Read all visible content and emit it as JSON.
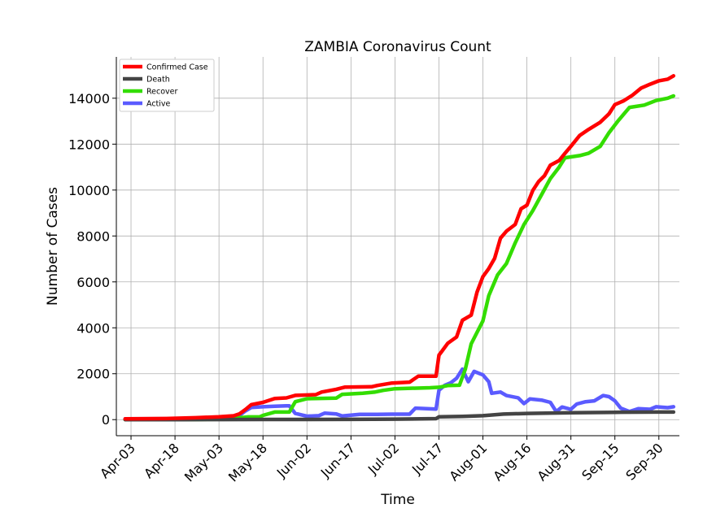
{
  "chart_data": {
    "type": "line",
    "title": "ZAMBIA Coronavirus Count",
    "xlabel": "Time",
    "ylabel": "Number of Cases",
    "x_ticks": [
      "Apr-03",
      "Apr-18",
      "May-03",
      "May-18",
      "Jun-02",
      "Jun-17",
      "Jul-02",
      "Jul-17",
      "Aug-01",
      "Aug-16",
      "Aug-31",
      "Sep-15",
      "Sep-30"
    ],
    "y_ticks": [
      0,
      2000,
      4000,
      6000,
      8000,
      10000,
      12000,
      14000
    ],
    "xlim": [
      "2020-03-29",
      "2020-10-07"
    ],
    "ylim": [
      -700,
      15800
    ],
    "grid": true,
    "legend_position": "top-left",
    "series": [
      {
        "name": "Confirmed Case",
        "color": "#ff0000",
        "points": [
          [
            "2020-04-01",
            35
          ],
          [
            "2020-04-15",
            48
          ],
          [
            "2020-04-25",
            84
          ],
          [
            "2020-05-03",
            124
          ],
          [
            "2020-05-08",
            167
          ],
          [
            "2020-05-10",
            252
          ],
          [
            "2020-05-12",
            441
          ],
          [
            "2020-05-14",
            654
          ],
          [
            "2020-05-18",
            753
          ],
          [
            "2020-05-22",
            920
          ],
          [
            "2020-05-26",
            946
          ],
          [
            "2020-05-29",
            1057
          ],
          [
            "2020-06-05",
            1089
          ],
          [
            "2020-06-07",
            1200
          ],
          [
            "2020-06-12",
            1321
          ],
          [
            "2020-06-15",
            1416
          ],
          [
            "2020-06-24",
            1430
          ],
          [
            "2020-06-26",
            1489
          ],
          [
            "2020-07-01",
            1594
          ],
          [
            "2020-07-07",
            1632
          ],
          [
            "2020-07-10",
            1895
          ],
          [
            "2020-07-16",
            1895
          ],
          [
            "2020-07-17",
            2810
          ],
          [
            "2020-07-18",
            2980
          ],
          [
            "2020-07-20",
            3326
          ],
          [
            "2020-07-23",
            3600
          ],
          [
            "2020-07-25",
            4328
          ],
          [
            "2020-07-28",
            4552
          ],
          [
            "2020-07-30",
            5555
          ],
          [
            "2020-08-01",
            6228
          ],
          [
            "2020-08-03",
            6580
          ],
          [
            "2020-08-05",
            7022
          ],
          [
            "2020-08-07",
            7903
          ],
          [
            "2020-08-09",
            8210
          ],
          [
            "2020-08-12",
            8501
          ],
          [
            "2020-08-14",
            9186
          ],
          [
            "2020-08-16",
            9343
          ],
          [
            "2020-08-18",
            9981
          ],
          [
            "2020-08-20",
            10372
          ],
          [
            "2020-08-22",
            10627
          ],
          [
            "2020-08-24",
            11082
          ],
          [
            "2020-08-27",
            11285
          ],
          [
            "2020-08-29",
            11601
          ],
          [
            "2020-08-31",
            11902
          ],
          [
            "2020-09-03",
            12381
          ],
          [
            "2020-09-06",
            12639
          ],
          [
            "2020-09-10",
            12952
          ],
          [
            "2020-09-13",
            13323
          ],
          [
            "2020-09-15",
            13720
          ],
          [
            "2020-09-18",
            13887
          ],
          [
            "2020-09-21",
            14131
          ],
          [
            "2020-09-24",
            14443
          ],
          [
            "2020-09-27",
            14612
          ],
          [
            "2020-09-30",
            14759
          ],
          [
            "2020-10-03",
            14830
          ],
          [
            "2020-10-05",
            14974
          ]
        ]
      },
      {
        "name": "Death",
        "color": "#444444",
        "points": [
          [
            "2020-04-01",
            0
          ],
          [
            "2020-04-20",
            2
          ],
          [
            "2020-05-03",
            3
          ],
          [
            "2020-05-18",
            7
          ],
          [
            "2020-06-02",
            8
          ],
          [
            "2020-06-17",
            11
          ],
          [
            "2020-07-02",
            24
          ],
          [
            "2020-07-16",
            42
          ],
          [
            "2020-07-17",
            120
          ],
          [
            "2020-07-25",
            140
          ],
          [
            "2020-08-01",
            170
          ],
          [
            "2020-08-08",
            241
          ],
          [
            "2020-08-16",
            270
          ],
          [
            "2020-08-31",
            303
          ],
          [
            "2020-09-15",
            320
          ],
          [
            "2020-09-30",
            330
          ],
          [
            "2020-10-05",
            330
          ]
        ]
      },
      {
        "name": "Recover",
        "color": "#33dd00",
        "points": [
          [
            "2020-04-01",
            0
          ],
          [
            "2020-04-25",
            5
          ],
          [
            "2020-05-03",
            20
          ],
          [
            "2020-05-08",
            56
          ],
          [
            "2020-05-13",
            117
          ],
          [
            "2020-05-17",
            124
          ],
          [
            "2020-05-18",
            186
          ],
          [
            "2020-05-22",
            330
          ],
          [
            "2020-05-27",
            332
          ],
          [
            "2020-05-29",
            779
          ],
          [
            "2020-06-02",
            912
          ],
          [
            "2020-06-12",
            935
          ],
          [
            "2020-06-14",
            1104
          ],
          [
            "2020-06-21",
            1152
          ],
          [
            "2020-06-25",
            1199
          ],
          [
            "2020-06-28",
            1276
          ],
          [
            "2020-07-02",
            1348
          ],
          [
            "2020-07-14",
            1390
          ],
          [
            "2020-07-17",
            1412
          ],
          [
            "2020-07-20",
            1485
          ],
          [
            "2020-07-24",
            1500
          ],
          [
            "2020-07-26",
            2200
          ],
          [
            "2020-07-28",
            3300
          ],
          [
            "2020-07-30",
            3800
          ],
          [
            "2020-08-01",
            4300
          ],
          [
            "2020-08-03",
            5400
          ],
          [
            "2020-08-06",
            6300
          ],
          [
            "2020-08-09",
            6800
          ],
          [
            "2020-08-12",
            7700
          ],
          [
            "2020-08-15",
            8500
          ],
          [
            "2020-08-18",
            9100
          ],
          [
            "2020-08-21",
            9800
          ],
          [
            "2020-08-24",
            10500
          ],
          [
            "2020-08-27",
            11000
          ],
          [
            "2020-08-29",
            11405
          ],
          [
            "2020-09-03",
            11500
          ],
          [
            "2020-09-06",
            11600
          ],
          [
            "2020-09-10",
            11900
          ],
          [
            "2020-09-13",
            12500
          ],
          [
            "2020-09-16",
            13000
          ],
          [
            "2020-09-20",
            13600
          ],
          [
            "2020-09-25",
            13700
          ],
          [
            "2020-09-29",
            13900
          ],
          [
            "2020-10-03",
            14000
          ],
          [
            "2020-10-05",
            14100
          ]
        ]
      },
      {
        "name": "Active",
        "color": "#5b5bff",
        "points": [
          [
            "2020-04-01",
            35
          ],
          [
            "2020-04-20",
            40
          ],
          [
            "2020-05-03",
            80
          ],
          [
            "2020-05-08",
            110
          ],
          [
            "2020-05-10",
            190
          ],
          [
            "2020-05-12",
            380
          ],
          [
            "2020-05-14",
            530
          ],
          [
            "2020-05-18",
            560
          ],
          [
            "2020-05-22",
            580
          ],
          [
            "2020-05-26",
            600
          ],
          [
            "2020-05-27",
            600
          ],
          [
            "2020-05-29",
            270
          ],
          [
            "2020-06-02",
            150
          ],
          [
            "2020-06-06",
            170
          ],
          [
            "2020-06-08",
            280
          ],
          [
            "2020-06-12",
            250
          ],
          [
            "2020-06-14",
            160
          ],
          [
            "2020-06-20",
            230
          ],
          [
            "2020-06-26",
            230
          ],
          [
            "2020-07-01",
            240
          ],
          [
            "2020-07-07",
            240
          ],
          [
            "2020-07-09",
            500
          ],
          [
            "2020-07-16",
            460
          ],
          [
            "2020-07-17",
            1280
          ],
          [
            "2020-07-19",
            1500
          ],
          [
            "2020-07-21",
            1600
          ],
          [
            "2020-07-23",
            1800
          ],
          [
            "2020-07-25",
            2200
          ],
          [
            "2020-07-27",
            1650
          ],
          [
            "2020-07-29",
            2100
          ],
          [
            "2020-08-01",
            1950
          ],
          [
            "2020-08-03",
            1650
          ],
          [
            "2020-08-04",
            1150
          ],
          [
            "2020-08-07",
            1200
          ],
          [
            "2020-08-09",
            1050
          ],
          [
            "2020-08-13",
            950
          ],
          [
            "2020-08-15",
            700
          ],
          [
            "2020-08-17",
            900
          ],
          [
            "2020-08-21",
            850
          ],
          [
            "2020-08-24",
            750
          ],
          [
            "2020-08-26",
            350
          ],
          [
            "2020-08-28",
            550
          ],
          [
            "2020-08-31",
            450
          ],
          [
            "2020-09-02",
            680
          ],
          [
            "2020-09-05",
            780
          ],
          [
            "2020-09-08",
            820
          ],
          [
            "2020-09-11",
            1050
          ],
          [
            "2020-09-13",
            1000
          ],
          [
            "2020-09-15",
            820
          ],
          [
            "2020-09-17",
            500
          ],
          [
            "2020-09-20",
            350
          ],
          [
            "2020-09-23",
            480
          ],
          [
            "2020-09-27",
            450
          ],
          [
            "2020-09-29",
            560
          ],
          [
            "2020-10-03",
            520
          ],
          [
            "2020-10-05",
            560
          ]
        ]
      }
    ]
  }
}
